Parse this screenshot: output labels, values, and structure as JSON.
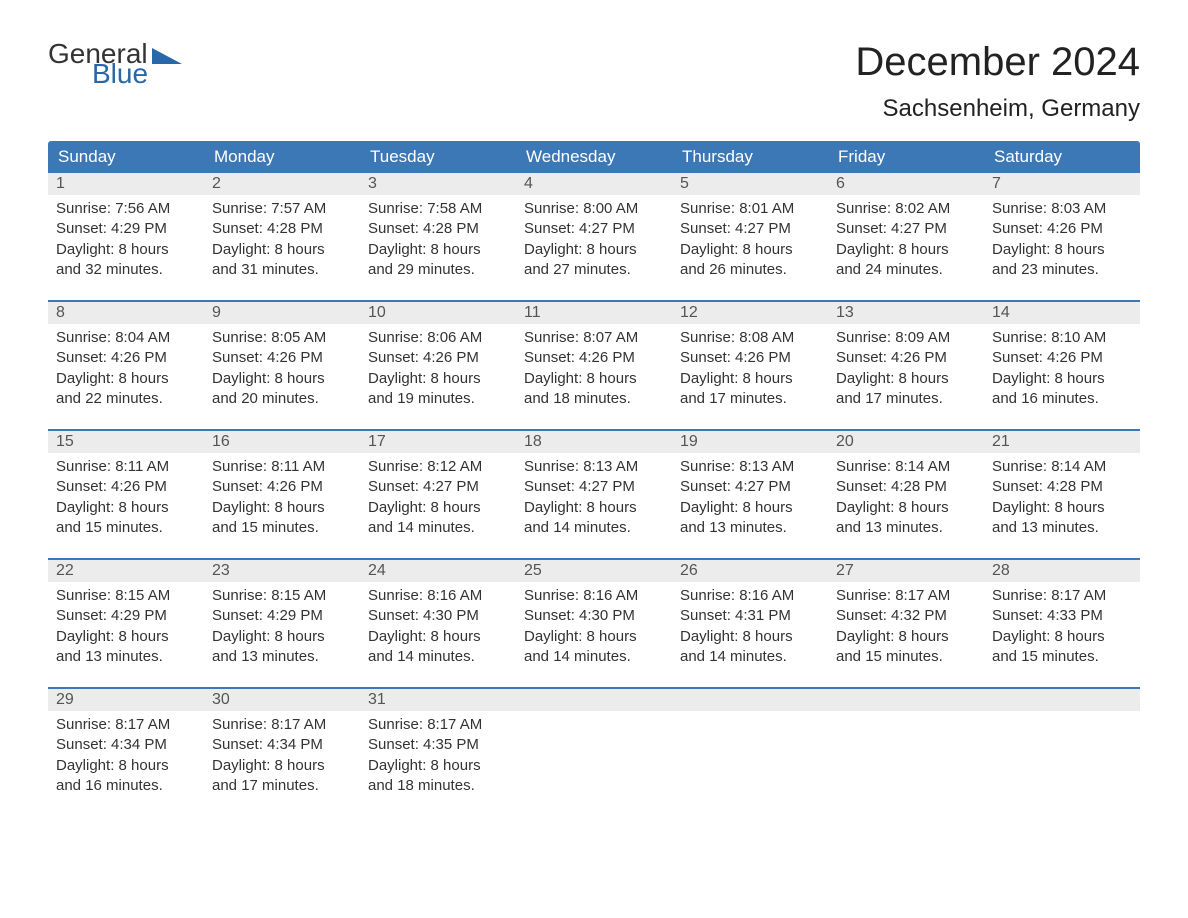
{
  "logo": {
    "word1": "General",
    "word2": "Blue",
    "flag_color": "#2868a8"
  },
  "title": "December 2024",
  "location": "Sachsenheim, Germany",
  "colors": {
    "header_bg": "#3b78b5",
    "header_text": "#ffffff",
    "daynum_bg": "#ececec",
    "week_border": "#3b78b5",
    "body_text": "#333333"
  },
  "day_names": [
    "Sunday",
    "Monday",
    "Tuesday",
    "Wednesday",
    "Thursday",
    "Friday",
    "Saturday"
  ],
  "weeks": [
    [
      {
        "n": "1",
        "sunrise": "7:56 AM",
        "sunset": "4:29 PM",
        "daylight": "8 hours and 32 minutes."
      },
      {
        "n": "2",
        "sunrise": "7:57 AM",
        "sunset": "4:28 PM",
        "daylight": "8 hours and 31 minutes."
      },
      {
        "n": "3",
        "sunrise": "7:58 AM",
        "sunset": "4:28 PM",
        "daylight": "8 hours and 29 minutes."
      },
      {
        "n": "4",
        "sunrise": "8:00 AM",
        "sunset": "4:27 PM",
        "daylight": "8 hours and 27 minutes."
      },
      {
        "n": "5",
        "sunrise": "8:01 AM",
        "sunset": "4:27 PM",
        "daylight": "8 hours and 26 minutes."
      },
      {
        "n": "6",
        "sunrise": "8:02 AM",
        "sunset": "4:27 PM",
        "daylight": "8 hours and 24 minutes."
      },
      {
        "n": "7",
        "sunrise": "8:03 AM",
        "sunset": "4:26 PM",
        "daylight": "8 hours and 23 minutes."
      }
    ],
    [
      {
        "n": "8",
        "sunrise": "8:04 AM",
        "sunset": "4:26 PM",
        "daylight": "8 hours and 22 minutes."
      },
      {
        "n": "9",
        "sunrise": "8:05 AM",
        "sunset": "4:26 PM",
        "daylight": "8 hours and 20 minutes."
      },
      {
        "n": "10",
        "sunrise": "8:06 AM",
        "sunset": "4:26 PM",
        "daylight": "8 hours and 19 minutes."
      },
      {
        "n": "11",
        "sunrise": "8:07 AM",
        "sunset": "4:26 PM",
        "daylight": "8 hours and 18 minutes."
      },
      {
        "n": "12",
        "sunrise": "8:08 AM",
        "sunset": "4:26 PM",
        "daylight": "8 hours and 17 minutes."
      },
      {
        "n": "13",
        "sunrise": "8:09 AM",
        "sunset": "4:26 PM",
        "daylight": "8 hours and 17 minutes."
      },
      {
        "n": "14",
        "sunrise": "8:10 AM",
        "sunset": "4:26 PM",
        "daylight": "8 hours and 16 minutes."
      }
    ],
    [
      {
        "n": "15",
        "sunrise": "8:11 AM",
        "sunset": "4:26 PM",
        "daylight": "8 hours and 15 minutes."
      },
      {
        "n": "16",
        "sunrise": "8:11 AM",
        "sunset": "4:26 PM",
        "daylight": "8 hours and 15 minutes."
      },
      {
        "n": "17",
        "sunrise": "8:12 AM",
        "sunset": "4:27 PM",
        "daylight": "8 hours and 14 minutes."
      },
      {
        "n": "18",
        "sunrise": "8:13 AM",
        "sunset": "4:27 PM",
        "daylight": "8 hours and 14 minutes."
      },
      {
        "n": "19",
        "sunrise": "8:13 AM",
        "sunset": "4:27 PM",
        "daylight": "8 hours and 13 minutes."
      },
      {
        "n": "20",
        "sunrise": "8:14 AM",
        "sunset": "4:28 PM",
        "daylight": "8 hours and 13 minutes."
      },
      {
        "n": "21",
        "sunrise": "8:14 AM",
        "sunset": "4:28 PM",
        "daylight": "8 hours and 13 minutes."
      }
    ],
    [
      {
        "n": "22",
        "sunrise": "8:15 AM",
        "sunset": "4:29 PM",
        "daylight": "8 hours and 13 minutes."
      },
      {
        "n": "23",
        "sunrise": "8:15 AM",
        "sunset": "4:29 PM",
        "daylight": "8 hours and 13 minutes."
      },
      {
        "n": "24",
        "sunrise": "8:16 AM",
        "sunset": "4:30 PM",
        "daylight": "8 hours and 14 minutes."
      },
      {
        "n": "25",
        "sunrise": "8:16 AM",
        "sunset": "4:30 PM",
        "daylight": "8 hours and 14 minutes."
      },
      {
        "n": "26",
        "sunrise": "8:16 AM",
        "sunset": "4:31 PM",
        "daylight": "8 hours and 14 minutes."
      },
      {
        "n": "27",
        "sunrise": "8:17 AM",
        "sunset": "4:32 PM",
        "daylight": "8 hours and 15 minutes."
      },
      {
        "n": "28",
        "sunrise": "8:17 AM",
        "sunset": "4:33 PM",
        "daylight": "8 hours and 15 minutes."
      }
    ],
    [
      {
        "n": "29",
        "sunrise": "8:17 AM",
        "sunset": "4:34 PM",
        "daylight": "8 hours and 16 minutes."
      },
      {
        "n": "30",
        "sunrise": "8:17 AM",
        "sunset": "4:34 PM",
        "daylight": "8 hours and 17 minutes."
      },
      {
        "n": "31",
        "sunrise": "8:17 AM",
        "sunset": "4:35 PM",
        "daylight": "8 hours and 18 minutes."
      },
      null,
      null,
      null,
      null
    ]
  ],
  "labels": {
    "sunrise": "Sunrise:",
    "sunset": "Sunset:",
    "daylight": "Daylight:"
  }
}
